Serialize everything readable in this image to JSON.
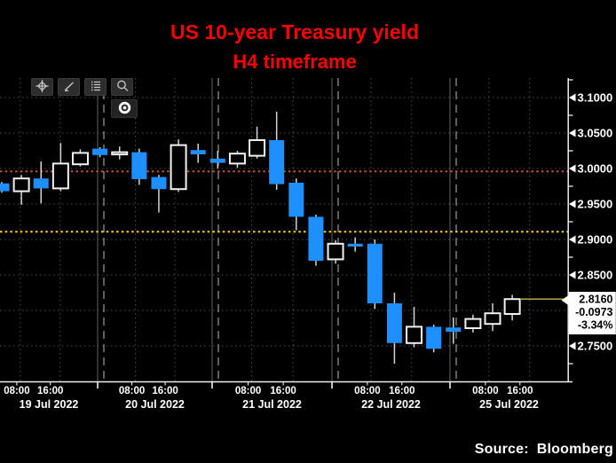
{
  "title": {
    "line1": "US 10-year Treasury yield",
    "line2": "H4 timeframe",
    "color": "#ff0000"
  },
  "source": {
    "label": "Source:",
    "brand": "Bloomberg"
  },
  "toolbar": {
    "buttons": [
      {
        "icon": "crosshair-icon"
      },
      {
        "icon": "trendline-draw-icon"
      },
      {
        "icon": "annotation-list-icon"
      },
      {
        "icon": "zoom-icon"
      }
    ],
    "active_marker_icon": "dot-marker-icon"
  },
  "chart_data": {
    "type": "candlestick",
    "title": "US 10-year Treasury yield",
    "subtitle": "H4 timeframe",
    "ylim": [
      2.72,
      3.128
    ],
    "grid": true,
    "legend_position": "none",
    "colors": {
      "down_candle": "#1e8fff",
      "up_candle_outline": "#f2f2f2",
      "wick": "#d4d4d4",
      "axis": "#ededed",
      "gridline": "#4b4b4b"
    },
    "h_grid_values": [
      3.1,
      3.05,
      3.0,
      2.95,
      2.9,
      2.85,
      2.8,
      2.75
    ],
    "y_axis": {
      "side": "right",
      "major": [
        {
          "label": "3.1000",
          "value": 3.1
        },
        {
          "label": "3.0500",
          "value": 3.05
        },
        {
          "label": "3.0000",
          "value": 3.0
        },
        {
          "label": "2.9500",
          "value": 2.95
        },
        {
          "label": "2.9000",
          "value": 2.9
        },
        {
          "label": "2.8500",
          "value": 2.85
        },
        {
          "label": "2.7500",
          "value": 2.75
        }
      ],
      "minor_values": [
        3.125,
        3.075,
        3.025,
        2.975,
        2.925,
        2.875,
        2.825,
        2.775,
        2.725
      ]
    },
    "x_axis": {
      "days": [
        {
          "date": "19 Jul 2022",
          "times": [
            "08:00",
            "16:00"
          ]
        },
        {
          "date": "20 Jul 2022",
          "times": [
            "08:00",
            "16:00"
          ]
        },
        {
          "date": "21 Jul 2022",
          "times": [
            "08:00",
            "16:00"
          ]
        },
        {
          "date": "22 Jul 2022",
          "times": [
            "08:00",
            "16:00"
          ]
        },
        {
          "date": "25 Jul 2022",
          "times": [
            "08:00",
            "16:00"
          ]
        }
      ]
    },
    "levels": [
      {
        "name": "upper-alert-line",
        "value": 2.996,
        "color": "#c8502e",
        "style": "dotted",
        "span": "full"
      },
      {
        "name": "lower-alert-line",
        "value": 2.911,
        "color": "#ffd400",
        "style": "dotted",
        "span": "full"
      },
      {
        "name": "last-price-line",
        "value": 2.816,
        "color": "#a89b28",
        "style": "solid",
        "span": "from-last-candle"
      }
    ],
    "last_quote": {
      "price": "2.8160",
      "net_change": "-0.0973",
      "pct_change": "-3.34%"
    },
    "candles": [
      {
        "date": "19 Jul 2022",
        "o": 2.979,
        "h": 2.981,
        "l": 2.966,
        "c": 2.968
      },
      {
        "date": "19 Jul 2022",
        "o": 2.968,
        "h": 2.991,
        "l": 2.949,
        "c": 2.986
      },
      {
        "date": "19 Jul 2022",
        "o": 2.986,
        "h": 3.01,
        "l": 2.951,
        "c": 2.972
      },
      {
        "date": "19 Jul 2022",
        "o": 2.972,
        "h": 3.036,
        "l": 2.968,
        "c": 3.007
      },
      {
        "date": "19 Jul 2022",
        "o": 3.006,
        "h": 3.027,
        "l": 3.003,
        "c": 3.022
      },
      {
        "date": "20 Jul 2022",
        "o": 3.028,
        "h": 3.03,
        "l": 3.016,
        "c": 3.019
      },
      {
        "date": "20 Jul 2022",
        "o": 3.021,
        "h": 3.031,
        "l": 3.013,
        "c": 3.023
      },
      {
        "date": "20 Jul 2022",
        "o": 3.023,
        "h": 3.028,
        "l": 2.977,
        "c": 2.985
      },
      {
        "date": "20 Jul 2022",
        "o": 2.988,
        "h": 2.991,
        "l": 2.938,
        "c": 2.971
      },
      {
        "date": "20 Jul 2022",
        "o": 2.971,
        "h": 3.041,
        "l": 2.967,
        "c": 3.033
      },
      {
        "date": "20 Jul 2022",
        "o": 3.026,
        "h": 3.035,
        "l": 3.008,
        "c": 3.02
      },
      {
        "date": "21 Jul 2022",
        "o": 3.014,
        "h": 3.025,
        "l": 3.0,
        "c": 3.008
      },
      {
        "date": "21 Jul 2022",
        "o": 3.007,
        "h": 3.025,
        "l": 3.001,
        "c": 3.021
      },
      {
        "date": "21 Jul 2022",
        "o": 3.018,
        "h": 3.059,
        "l": 3.014,
        "c": 3.04
      },
      {
        "date": "21 Jul 2022",
        "o": 3.04,
        "h": 3.08,
        "l": 2.97,
        "c": 2.978
      },
      {
        "date": "21 Jul 2022",
        "o": 2.98,
        "h": 2.986,
        "l": 2.913,
        "c": 2.932
      },
      {
        "date": "21 Jul 2022",
        "o": 2.932,
        "h": 2.935,
        "l": 2.863,
        "c": 2.87
      },
      {
        "date": "22 Jul 2022",
        "o": 2.872,
        "h": 2.899,
        "l": 2.866,
        "c": 2.894
      },
      {
        "date": "22 Jul 2022",
        "o": 2.894,
        "h": 2.903,
        "l": 2.883,
        "c": 2.89
      },
      {
        "date": "22 Jul 2022",
        "o": 2.894,
        "h": 2.9,
        "l": 2.802,
        "c": 2.81
      },
      {
        "date": "22 Jul 2022",
        "o": 2.81,
        "h": 2.825,
        "l": 2.725,
        "c": 2.754
      },
      {
        "date": "22 Jul 2022",
        "o": 2.754,
        "h": 2.805,
        "l": 2.748,
        "c": 2.777
      },
      {
        "date": "22 Jul 2022",
        "o": 2.777,
        "h": 2.78,
        "l": 2.741,
        "c": 2.746
      },
      {
        "date": "25 Jul 2022",
        "o": 2.776,
        "h": 2.79,
        "l": 2.753,
        "c": 2.77
      },
      {
        "date": "25 Jul 2022",
        "o": 2.775,
        "h": 2.794,
        "l": 2.769,
        "c": 2.788
      },
      {
        "date": "25 Jul 2022",
        "o": 2.781,
        "h": 2.81,
        "l": 2.771,
        "c": 2.796
      },
      {
        "date": "25 Jul 2022",
        "o": 2.795,
        "h": 2.822,
        "l": 2.786,
        "c": 2.816
      }
    ]
  }
}
